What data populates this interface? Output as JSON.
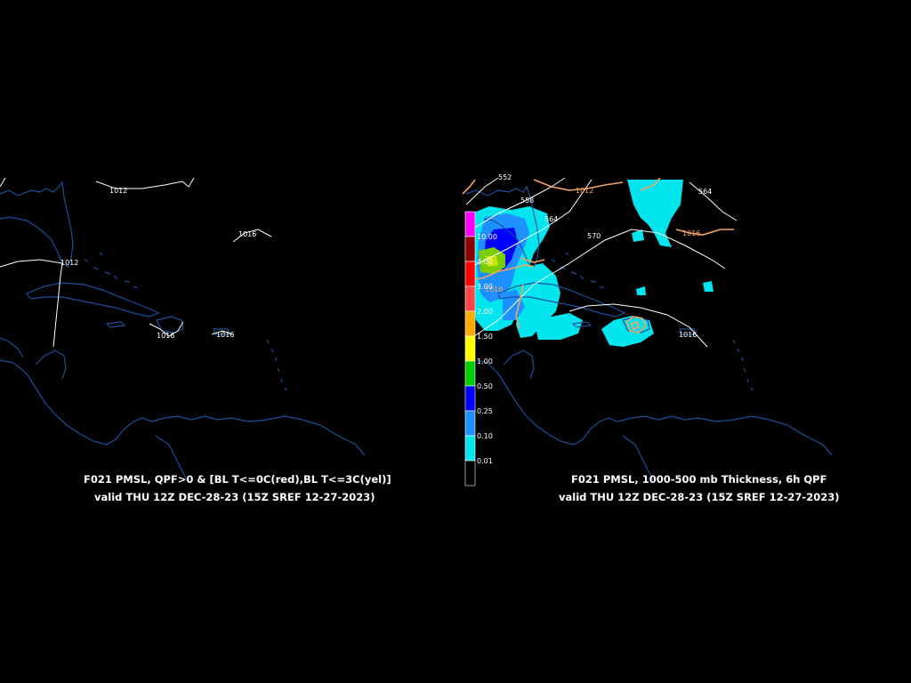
{
  "panels": [
    {
      "caption_line1": "F021 PMSL, QPF>0 & [BL T<=0C(red),BL T<=3C(yel)]",
      "caption_line2": "valid THU 12Z DEC-28-23 (15Z SREF 12-27-2023)",
      "isobar_labels": [
        "1012",
        "1016",
        "1012",
        "1016",
        "1016"
      ]
    },
    {
      "caption_line1": "F021 PMSL, 1000-500 mb Thickness, 6h QPF",
      "caption_line2": "valid THU 12Z DEC-28-23 (15Z SREF 12-27-2023)",
      "isobar_labels": [
        "1012",
        "1016",
        "1016",
        "1016"
      ],
      "thickness_labels": [
        "552",
        "558",
        "564",
        "570",
        "564"
      ]
    }
  ],
  "legend": {
    "labels": [
      "10.00",
      "4.00",
      "3.00",
      "2.00",
      "1.50",
      "1.00",
      "0.50",
      "0.25",
      "0.10",
      "0.01"
    ],
    "colors": [
      "#ff00ff",
      "#880000",
      "#ff0000",
      "#ff4444",
      "#ffaa00",
      "#ffff00",
      "#00cc00",
      "#0000ff",
      "#1e90ff",
      "#00e5ee",
      "#000000"
    ]
  },
  "colors": {
    "coastline": "#1c4f9c",
    "isobar": "#ffffff",
    "thickness": "#f4a460",
    "qpf_light": "#00e5ee",
    "qpf_mid": "#1e90ff",
    "qpf_blue": "#0000ff",
    "qpf_green": "#7ccd00"
  }
}
